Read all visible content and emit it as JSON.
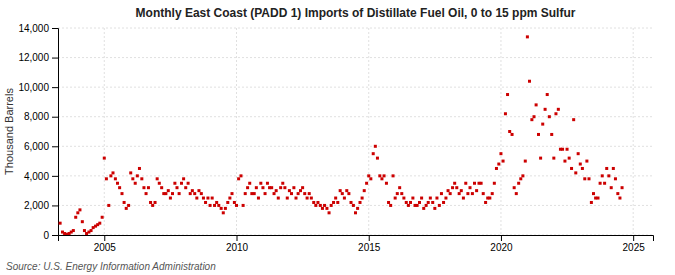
{
  "chart_data": {
    "type": "scatter",
    "title": "Monthly East Coast (PADD 1) Imports of Distillate Fuel Oil, 0 to 15 ppm Sulfur",
    "ylabel": "Thousand Barrels",
    "source": "Source: U.S. Energy Information Administration",
    "color": "#cc0000",
    "marker": "square",
    "grid": true,
    "xlim": [
      2003.25,
      2025.75
    ],
    "ylim": [
      0,
      14000
    ],
    "xticks": [
      2005,
      2010,
      2015,
      2020,
      2025
    ],
    "yticks": [
      0,
      {
        "value": 2000,
        "label": "2,000"
      },
      {
        "value": 4000,
        "label": "4,000"
      },
      {
        "value": 6000,
        "label": "6,000"
      },
      {
        "value": 8000,
        "label": "8,000"
      },
      {
        "value": 10000,
        "label": "10,000"
      },
      {
        "value": 12000,
        "label": "12,000"
      },
      {
        "value": 14000,
        "label": "14,000"
      }
    ],
    "x": [
      2003.33,
      2003.42,
      2003.5,
      2003.58,
      2003.67,
      2003.75,
      2003.83,
      2003.92,
      2004.0,
      2004.08,
      2004.17,
      2004.25,
      2004.33,
      2004.42,
      2004.5,
      2004.58,
      2004.67,
      2004.75,
      2004.83,
      2004.92,
      2005.0,
      2005.08,
      2005.17,
      2005.25,
      2005.33,
      2005.42,
      2005.5,
      2005.58,
      2005.67,
      2005.75,
      2005.83,
      2005.92,
      2006.0,
      2006.08,
      2006.17,
      2006.25,
      2006.33,
      2006.42,
      2006.5,
      2006.58,
      2006.67,
      2006.75,
      2006.83,
      2006.92,
      2007.0,
      2007.08,
      2007.17,
      2007.25,
      2007.33,
      2007.42,
      2007.5,
      2007.58,
      2007.67,
      2007.75,
      2007.83,
      2007.92,
      2008.0,
      2008.08,
      2008.17,
      2008.25,
      2008.33,
      2008.42,
      2008.5,
      2008.58,
      2008.67,
      2008.75,
      2008.83,
      2008.92,
      2009.0,
      2009.08,
      2009.17,
      2009.25,
      2009.33,
      2009.42,
      2009.5,
      2009.58,
      2009.67,
      2009.75,
      2009.83,
      2009.92,
      2010.0,
      2010.08,
      2010.17,
      2010.25,
      2010.33,
      2010.42,
      2010.5,
      2010.58,
      2010.67,
      2010.75,
      2010.83,
      2010.92,
      2011.0,
      2011.08,
      2011.17,
      2011.25,
      2011.33,
      2011.42,
      2011.5,
      2011.58,
      2011.67,
      2011.75,
      2011.83,
      2011.92,
      2012.0,
      2012.08,
      2012.17,
      2012.25,
      2012.33,
      2012.42,
      2012.5,
      2012.58,
      2012.67,
      2012.75,
      2012.83,
      2012.92,
      2013.0,
      2013.08,
      2013.17,
      2013.25,
      2013.33,
      2013.42,
      2013.5,
      2013.58,
      2013.67,
      2013.75,
      2013.83,
      2013.92,
      2014.0,
      2014.08,
      2014.17,
      2014.25,
      2014.33,
      2014.42,
      2014.5,
      2014.58,
      2014.67,
      2014.75,
      2014.83,
      2014.92,
      2015.0,
      2015.08,
      2015.17,
      2015.25,
      2015.33,
      2015.42,
      2015.5,
      2015.58,
      2015.67,
      2015.75,
      2015.83,
      2015.92,
      2016.0,
      2016.08,
      2016.17,
      2016.25,
      2016.33,
      2016.42,
      2016.5,
      2016.58,
      2016.67,
      2016.75,
      2016.83,
      2016.92,
      2017.0,
      2017.08,
      2017.17,
      2017.25,
      2017.33,
      2017.42,
      2017.5,
      2017.58,
      2017.67,
      2017.75,
      2017.83,
      2017.92,
      2018.0,
      2018.08,
      2018.17,
      2018.25,
      2018.33,
      2018.42,
      2018.5,
      2018.58,
      2018.67,
      2018.75,
      2018.83,
      2018.92,
      2019.0,
      2019.08,
      2019.17,
      2019.25,
      2019.33,
      2019.42,
      2019.5,
      2019.58,
      2019.67,
      2019.75,
      2019.83,
      2019.92,
      2020.0,
      2020.08,
      2020.17,
      2020.25,
      2020.33,
      2020.42,
      2020.5,
      2020.58,
      2020.67,
      2020.75,
      2020.83,
      2020.92,
      2021.0,
      2021.08,
      2021.17,
      2021.25,
      2021.33,
      2021.42,
      2021.5,
      2021.58,
      2021.67,
      2021.75,
      2021.83,
      2021.92,
      2022.0,
      2022.08,
      2022.17,
      2022.25,
      2022.33,
      2022.42,
      2022.5,
      2022.58,
      2022.67,
      2022.75,
      2022.83,
      2022.92,
      2023.0,
      2023.08,
      2023.17,
      2023.25,
      2023.33,
      2023.42,
      2023.5,
      2023.58,
      2023.67,
      2023.75,
      2023.83,
      2023.92,
      2024.0,
      2024.08,
      2024.17,
      2024.25,
      2024.33,
      2024.42,
      2024.5,
      2024.58
    ],
    "values": [
      800,
      200,
      100,
      50,
      100,
      200,
      300,
      1200,
      1500,
      1700,
      900,
      300,
      100,
      200,
      300,
      500,
      600,
      700,
      800,
      1200,
      5200,
      3800,
      2000,
      4000,
      4200,
      3800,
      3500,
      3200,
      2800,
      2200,
      1800,
      2000,
      4200,
      3800,
      3500,
      4000,
      4500,
      3800,
      3200,
      2800,
      3200,
      2200,
      2000,
      2200,
      3800,
      3500,
      3200,
      2800,
      2800,
      3000,
      2500,
      2800,
      3500,
      3200,
      2800,
      3500,
      3800,
      3200,
      3500,
      2800,
      3000,
      2800,
      2500,
      3000,
      2800,
      2500,
      2200,
      2500,
      2000,
      2500,
      2000,
      2200,
      2000,
      1800,
      1500,
      1800,
      2200,
      2500,
      2800,
      2200,
      2000,
      3800,
      4000,
      2000,
      2800,
      3200,
      3500,
      2800,
      2800,
      3200,
      2500,
      3500,
      3200,
      2800,
      3500,
      3200,
      3200,
      2800,
      3000,
      2500,
      3200,
      3500,
      3200,
      2500,
      3000,
      2800,
      3200,
      2500,
      2800,
      3000,
      3200,
      2800,
      2500,
      2800,
      2500,
      2200,
      2000,
      2200,
      2000,
      1800,
      2000,
      1800,
      1500,
      2000,
      2200,
      2500,
      2200,
      3000,
      2800,
      2500,
      3000,
      2800,
      2200,
      2000,
      1500,
      1800,
      2200,
      2500,
      3000,
      3500,
      4000,
      3800,
      5500,
      6000,
      5200,
      4000,
      3800,
      4000,
      3500,
      2200,
      2000,
      4000,
      2500,
      2800,
      3200,
      2800,
      2500,
      2200,
      2000,
      2200,
      2500,
      2000,
      2000,
      2200,
      2500,
      1800,
      2000,
      2200,
      2500,
      2200,
      1800,
      2500,
      2000,
      2800,
      2200,
      2500,
      3000,
      2800,
      3200,
      3500,
      3200,
      2800,
      3000,
      2500,
      3500,
      2800,
      3200,
      2800,
      3500,
      3000,
      3500,
      3500,
      2800,
      2200,
      2500,
      2500,
      2800,
      3500,
      4500,
      4800,
      5500,
      5000,
      8200,
      9500,
      7000,
      6800,
      3200,
      2800,
      3500,
      3800,
      4000,
      5000,
      13400,
      10400,
      7800,
      8000,
      8800,
      6800,
      5200,
      7500,
      8500,
      9500,
      8000,
      6800,
      5200,
      8200,
      8500,
      5800,
      5800,
      5000,
      5800,
      5200,
      4500,
      7800,
      4200,
      5500,
      4800,
      4500,
      3800,
      5000,
      3800,
      2200,
      2800,
      2500,
      2500,
      3500,
      4000,
      3500,
      4500,
      4000,
      3200,
      4500,
      3800,
      2800,
      2500,
      3200
    ]
  }
}
